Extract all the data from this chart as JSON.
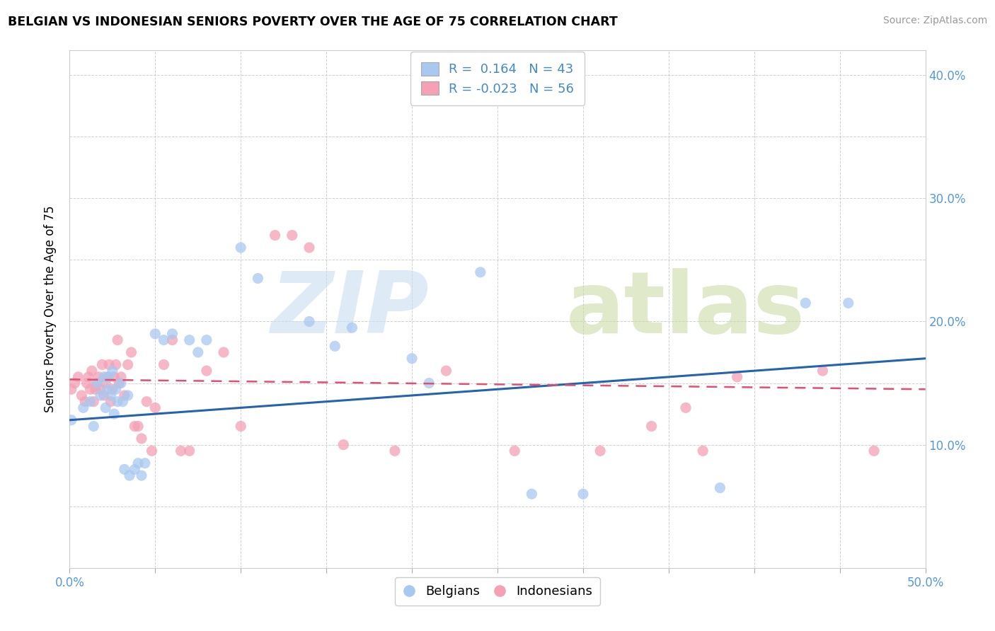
{
  "title": "BELGIAN VS INDONESIAN SENIORS POVERTY OVER THE AGE OF 75 CORRELATION CHART",
  "source": "Source: ZipAtlas.com",
  "ylabel": "Seniors Poverty Over the Age of 75",
  "xlim": [
    0.0,
    0.5
  ],
  "ylim": [
    0.0,
    0.42
  ],
  "belgian_color": "#a8c8f0",
  "indonesian_color": "#f4a0b5",
  "belgian_line_color": "#2563b0",
  "indonesian_line_color": "#e05070",
  "belgian_R": 0.164,
  "belgian_N": 43,
  "indonesian_R": -0.023,
  "indonesian_N": 56,
  "belgians_x": [
    0.001,
    0.008,
    0.012,
    0.014,
    0.016,
    0.018,
    0.02,
    0.021,
    0.022,
    0.023,
    0.024,
    0.025,
    0.026,
    0.027,
    0.028,
    0.03,
    0.031,
    0.032,
    0.034,
    0.035,
    0.038,
    0.04,
    0.042,
    0.044,
    0.05,
    0.055,
    0.06,
    0.07,
    0.075,
    0.08,
    0.1,
    0.11,
    0.14,
    0.155,
    0.165,
    0.2,
    0.21,
    0.24,
    0.27,
    0.3,
    0.38,
    0.43,
    0.455
  ],
  "belgians_y": [
    0.12,
    0.13,
    0.135,
    0.115,
    0.15,
    0.14,
    0.155,
    0.13,
    0.145,
    0.155,
    0.14,
    0.16,
    0.125,
    0.145,
    0.135,
    0.15,
    0.135,
    0.08,
    0.14,
    0.075,
    0.08,
    0.085,
    0.075,
    0.085,
    0.19,
    0.185,
    0.19,
    0.185,
    0.175,
    0.185,
    0.26,
    0.235,
    0.2,
    0.18,
    0.195,
    0.17,
    0.15,
    0.24,
    0.06,
    0.06,
    0.065,
    0.215,
    0.215
  ],
  "indonesians_x": [
    0.001,
    0.003,
    0.005,
    0.007,
    0.009,
    0.01,
    0.011,
    0.012,
    0.013,
    0.014,
    0.015,
    0.016,
    0.017,
    0.018,
    0.019,
    0.02,
    0.021,
    0.022,
    0.023,
    0.024,
    0.025,
    0.026,
    0.027,
    0.028,
    0.029,
    0.03,
    0.032,
    0.034,
    0.036,
    0.038,
    0.04,
    0.042,
    0.045,
    0.048,
    0.05,
    0.055,
    0.06,
    0.065,
    0.07,
    0.08,
    0.09,
    0.1,
    0.12,
    0.13,
    0.14,
    0.16,
    0.19,
    0.22,
    0.26,
    0.31,
    0.34,
    0.36,
    0.37,
    0.39,
    0.44,
    0.47
  ],
  "indonesians_y": [
    0.145,
    0.15,
    0.155,
    0.14,
    0.135,
    0.15,
    0.155,
    0.145,
    0.16,
    0.135,
    0.145,
    0.15,
    0.155,
    0.145,
    0.165,
    0.14,
    0.15,
    0.155,
    0.165,
    0.135,
    0.145,
    0.155,
    0.165,
    0.185,
    0.15,
    0.155,
    0.14,
    0.165,
    0.175,
    0.115,
    0.115,
    0.105,
    0.135,
    0.095,
    0.13,
    0.165,
    0.185,
    0.095,
    0.095,
    0.16,
    0.175,
    0.115,
    0.27,
    0.27,
    0.26,
    0.1,
    0.095,
    0.16,
    0.095,
    0.095,
    0.115,
    0.13,
    0.095,
    0.155,
    0.16,
    0.095
  ],
  "belgian_trend": [
    0.12,
    0.17
  ],
  "indonesian_trend": [
    0.153,
    0.145
  ]
}
